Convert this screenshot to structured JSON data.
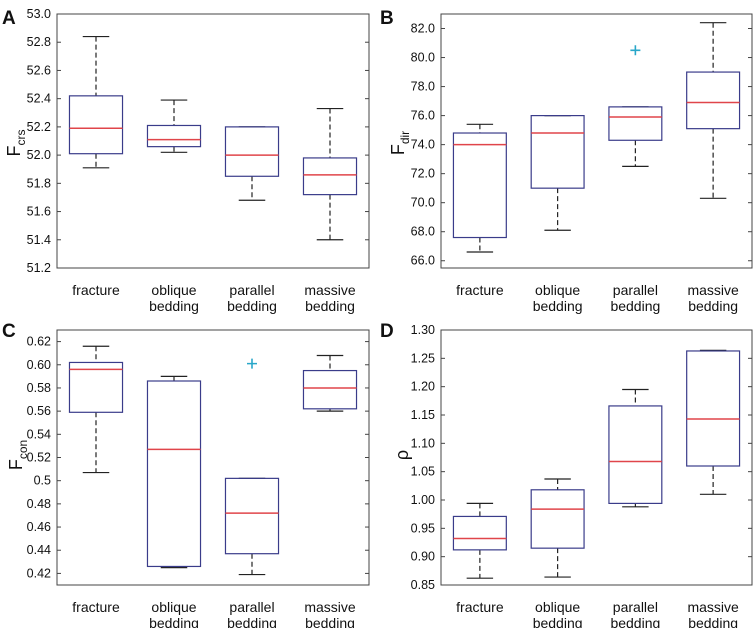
{
  "chart_data": [
    {
      "type": "box",
      "panel_label": "A",
      "ylabel_main": "F",
      "ylabel_sub": "crs",
      "ylim": [
        51.2,
        53.0
      ],
      "yticks": [
        51.2,
        51.4,
        51.6,
        51.8,
        52.0,
        52.2,
        52.4,
        52.6,
        52.8,
        53.0
      ],
      "tick_labels": [
        "51.2",
        "51.4",
        "51.6",
        "51.8",
        "52.0",
        "52.2",
        "52.4",
        "52.6",
        "52.8",
        "53.0"
      ],
      "categories": [
        [
          "fracture"
        ],
        [
          "oblique",
          "bedding"
        ],
        [
          "parallel",
          "bedding"
        ],
        [
          "massive",
          "bedding"
        ]
      ],
      "boxes": [
        {
          "whisker_low": 51.91,
          "q1": 52.01,
          "median": 52.19,
          "q3": 52.42,
          "whisker_high": 52.84,
          "outliers": []
        },
        {
          "whisker_low": 52.02,
          "q1": 52.06,
          "median": 52.11,
          "q3": 52.21,
          "whisker_high": 52.39,
          "outliers": []
        },
        {
          "whisker_low": 51.68,
          "q1": 51.85,
          "median": 52.0,
          "q3": 52.2,
          "whisker_high": 52.2,
          "outliers": []
        },
        {
          "whisker_low": 51.4,
          "q1": 51.72,
          "median": 51.86,
          "q3": 51.98,
          "whisker_high": 52.33,
          "outliers": []
        }
      ]
    },
    {
      "type": "box",
      "panel_label": "B",
      "ylabel_main": "F",
      "ylabel_sub": "dir",
      "ylim": [
        65.5,
        83.0
      ],
      "yticks": [
        66,
        68,
        70,
        72,
        74,
        76,
        78,
        80,
        82
      ],
      "tick_labels": [
        "66.0",
        "68.0",
        "70.0",
        "72.0",
        "74.0",
        "76.0",
        "78.0",
        "80.0",
        "82.0"
      ],
      "categories": [
        [
          "fracture"
        ],
        [
          "oblique",
          "bedding"
        ],
        [
          "parallel",
          "bedding"
        ],
        [
          "massive",
          "bedding"
        ]
      ],
      "boxes": [
        {
          "whisker_low": 66.6,
          "q1": 67.6,
          "median": 74.0,
          "q3": 74.8,
          "whisker_high": 75.4,
          "outliers": []
        },
        {
          "whisker_low": 68.1,
          "q1": 71.0,
          "median": 74.8,
          "q3": 76.0,
          "whisker_high": 76.0,
          "outliers": []
        },
        {
          "whisker_low": 72.5,
          "q1": 74.3,
          "median": 75.9,
          "q3": 76.6,
          "whisker_high": 76.6,
          "outliers": [
            80.5
          ]
        },
        {
          "whisker_low": 70.3,
          "q1": 75.1,
          "median": 76.9,
          "q3": 79.0,
          "whisker_high": 82.4,
          "outliers": []
        }
      ]
    },
    {
      "type": "box",
      "panel_label": "C",
      "ylabel_main": "F",
      "ylabel_sub": "con",
      "ylim": [
        0.41,
        0.63
      ],
      "yticks": [
        0.42,
        0.44,
        0.46,
        0.48,
        0.5,
        0.52,
        0.54,
        0.56,
        0.58,
        0.6,
        0.62
      ],
      "tick_labels": [
        "0.42",
        "0.44",
        "0.46",
        "0.48",
        "0.5",
        "0.52",
        "0.54",
        "0.56",
        "0.58",
        "0.60",
        "0.62"
      ],
      "categories": [
        [
          "fracture"
        ],
        [
          "oblique",
          "bedding"
        ],
        [
          "parallel",
          "bedding"
        ],
        [
          "massive",
          "bedding"
        ]
      ],
      "boxes": [
        {
          "whisker_low": 0.507,
          "q1": 0.559,
          "median": 0.596,
          "q3": 0.602,
          "whisker_high": 0.616,
          "outliers": []
        },
        {
          "whisker_low": 0.425,
          "q1": 0.426,
          "median": 0.527,
          "q3": 0.586,
          "whisker_high": 0.59,
          "outliers": []
        },
        {
          "whisker_low": 0.419,
          "q1": 0.437,
          "median": 0.472,
          "q3": 0.502,
          "whisker_high": 0.502,
          "outliers": [
            0.601
          ]
        },
        {
          "whisker_low": 0.56,
          "q1": 0.562,
          "median": 0.58,
          "q3": 0.595,
          "whisker_high": 0.608,
          "outliers": []
        }
      ]
    },
    {
      "type": "box",
      "panel_label": "D",
      "ylabel_main": "ρ",
      "ylabel_sub": "",
      "ylim": [
        0.85,
        1.3
      ],
      "yticks": [
        0.85,
        0.9,
        0.95,
        1.0,
        1.05,
        1.1,
        1.15,
        1.2,
        1.25,
        1.3
      ],
      "tick_labels": [
        "0.85",
        "0.90",
        "0.95",
        "1.00",
        "1.05",
        "1.10",
        "1.15",
        "1.20",
        "1.25",
        "1.30"
      ],
      "categories": [
        [
          "fracture"
        ],
        [
          "oblique",
          "bedding"
        ],
        [
          "parallel",
          "bedding"
        ],
        [
          "massive",
          "bedding"
        ]
      ],
      "boxes": [
        {
          "whisker_low": 0.862,
          "q1": 0.912,
          "median": 0.932,
          "q3": 0.971,
          "whisker_high": 0.994,
          "outliers": []
        },
        {
          "whisker_low": 0.864,
          "q1": 0.915,
          "median": 0.984,
          "q3": 1.018,
          "whisker_high": 1.037,
          "outliers": []
        },
        {
          "whisker_low": 0.988,
          "q1": 0.994,
          "median": 1.068,
          "q3": 1.166,
          "whisker_high": 1.195,
          "outliers": []
        },
        {
          "whisker_low": 1.01,
          "q1": 1.06,
          "median": 1.143,
          "q3": 1.263,
          "whisker_high": 1.264,
          "outliers": []
        }
      ]
    }
  ],
  "colors": {
    "box": "#3a3c8a",
    "median": "#e0454a",
    "whisker": "#222222",
    "outlier": "#29a7c9",
    "axis": "#444444"
  }
}
